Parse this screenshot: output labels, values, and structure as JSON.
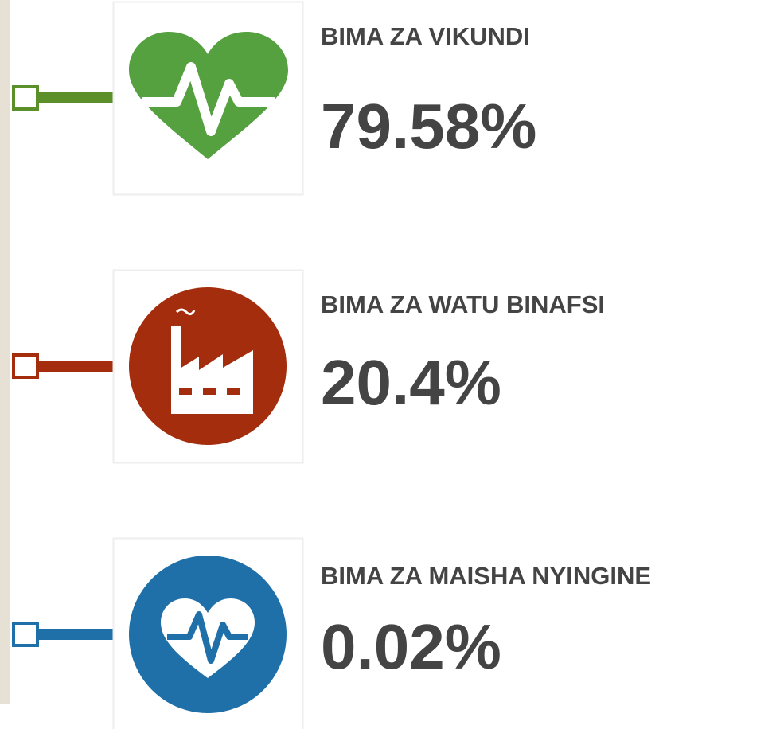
{
  "items": [
    {
      "label": "BIMA ZA VIKUNDI",
      "value": "79.58%"
    },
    {
      "label": "BIMA ZA WATU BINAFSI",
      "value": "20.4%"
    },
    {
      "label": "BIMA ZA MAISHA NYINGINE",
      "value": "0.02%"
    }
  ]
}
